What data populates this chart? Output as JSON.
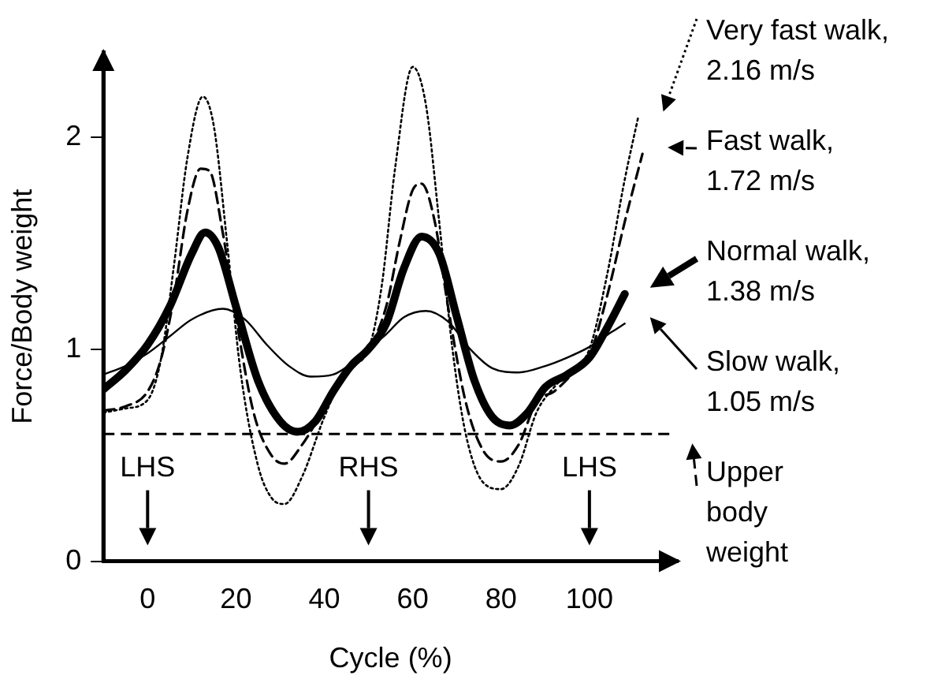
{
  "chart_data": {
    "type": "line",
    "xlabel": "Cycle (%)",
    "ylabel": "Force/Body weight",
    "xlim": [
      -10,
      120
    ],
    "ylim": [
      0,
      2.4
    ],
    "xticks": [
      0,
      20,
      40,
      60,
      80,
      100
    ],
    "yticks": [
      0,
      1,
      2
    ],
    "grid": false,
    "legend": "right",
    "marker": "none",
    "series": [
      {
        "name": "Very fast walk, 2.16 m/s",
        "color": "#000000",
        "line_style": "dotted",
        "x": [
          -10,
          -5,
          0,
          3,
          6,
          9,
          12.5,
          15,
          18,
          21,
          25,
          28,
          31,
          35,
          40,
          45,
          50,
          53,
          56,
          60,
          63,
          66,
          69,
          72,
          76,
          80,
          84,
          88,
          92,
          96,
          100,
          104,
          108,
          111
        ],
        "values": [
          0.7,
          0.72,
          0.76,
          0.95,
          1.4,
          1.9,
          2.19,
          2.05,
          1.5,
          0.9,
          0.45,
          0.3,
          0.27,
          0.4,
          0.68,
          0.9,
          1.0,
          1.3,
          1.85,
          2.33,
          2.15,
          1.6,
          1.0,
          0.6,
          0.37,
          0.34,
          0.45,
          0.7,
          0.82,
          0.9,
          1.0,
          1.35,
          1.8,
          2.09
        ]
      },
      {
        "name": "Fast walk, 1.72 m/s",
        "color": "#000000",
        "line_style": "dashed",
        "x": [
          -10,
          -5,
          0,
          3,
          6,
          9,
          12,
          14,
          17,
          20,
          24,
          28,
          31,
          35,
          40,
          45,
          50,
          54,
          57,
          60,
          62,
          65,
          68,
          72,
          76,
          80,
          84,
          88,
          92,
          96,
          100,
          104,
          108,
          112
        ],
        "values": [
          0.71,
          0.73,
          0.8,
          0.95,
          1.25,
          1.65,
          1.85,
          1.84,
          1.55,
          1.15,
          0.7,
          0.5,
          0.46,
          0.55,
          0.72,
          0.88,
          1.0,
          1.2,
          1.5,
          1.75,
          1.78,
          1.6,
          1.2,
          0.75,
          0.52,
          0.47,
          0.55,
          0.75,
          0.8,
          0.88,
          0.97,
          1.25,
          1.6,
          1.92
        ]
      },
      {
        "name": "Normal walk, 1.38 m/s",
        "color": "#000000",
        "line_style": "solid",
        "x": [
          -10,
          -5,
          0,
          5,
          10,
          13,
          16,
          20,
          25,
          30,
          34,
          38,
          42,
          46,
          50,
          54,
          58,
          62,
          66,
          70,
          74,
          78,
          82,
          86,
          90,
          95,
          100,
          104,
          108
        ],
        "values": [
          0.81,
          0.9,
          1.02,
          1.2,
          1.45,
          1.55,
          1.48,
          1.2,
          0.85,
          0.66,
          0.61,
          0.66,
          0.8,
          0.92,
          1.0,
          1.12,
          1.38,
          1.53,
          1.45,
          1.15,
          0.85,
          0.68,
          0.64,
          0.7,
          0.82,
          0.88,
          0.96,
          1.1,
          1.26
        ]
      },
      {
        "name": "Slow walk, 1.05 m/s",
        "color": "#000000",
        "line_style": "solid",
        "x": [
          -10,
          -5,
          0,
          5,
          10,
          17,
          22,
          27,
          32,
          37,
          42,
          46,
          50,
          54,
          58,
          63,
          68,
          73,
          78,
          84,
          90,
          95,
          100,
          105,
          108
        ],
        "values": [
          0.88,
          0.92,
          0.98,
          1.06,
          1.14,
          1.19,
          1.14,
          1.02,
          0.92,
          0.87,
          0.88,
          0.93,
          1.0,
          1.07,
          1.15,
          1.18,
          1.13,
          1.0,
          0.91,
          0.89,
          0.92,
          0.96,
          1.01,
          1.08,
          1.12
        ]
      }
    ],
    "ref_lines": [
      {
        "axis": "y",
        "value": 0.6,
        "label": "Upper body weight",
        "line_style": "dashed",
        "color": "#000000"
      }
    ],
    "annotations": [
      {
        "text": "LHS",
        "x": 0
      },
      {
        "text": "RHS",
        "x": 50
      },
      {
        "text": "LHS",
        "x": 100
      }
    ]
  }
}
